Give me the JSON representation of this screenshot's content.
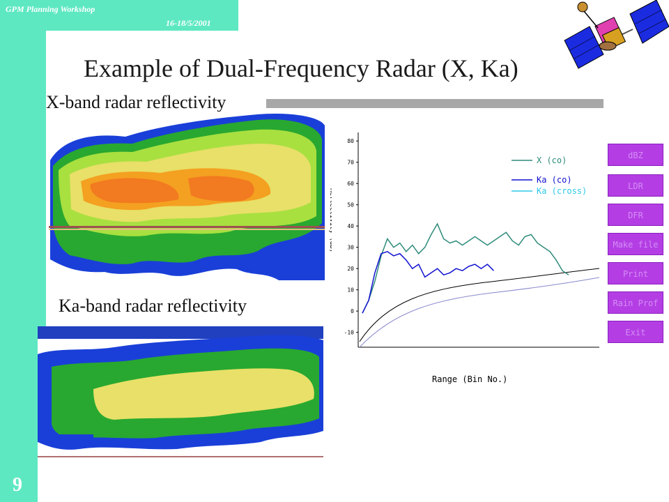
{
  "header": {
    "workshop": "GPM Planning Workshop",
    "date": "16-18/5/2001",
    "title": "Example of Dual-Frequency Radar (X, Ka)",
    "page_number": "9"
  },
  "images": {
    "xband_label": "X-band radar reflectivity",
    "kaband_label": "Ka-band radar reflectivity",
    "colorbar_label": "Reflectivity (dB)"
  },
  "buttons": [
    "dBZ",
    "LDR",
    "DFR",
    "Make file",
    "Print",
    "Rain Prof",
    "Exit"
  ],
  "colors": {
    "accent": "#5ee8c2",
    "button": "#b43ee4",
    "x_co": "#2e8b7a",
    "ka_co": "#1010d0",
    "ka_cross": "#30c8e8"
  },
  "chart_data": {
    "type": "line",
    "title": "",
    "xlabel": "Range (Bin No.)",
    "ylabel": "",
    "ylim": [
      -17,
      84
    ],
    "yticks": [
      80,
      70,
      60,
      50,
      40,
      30,
      20,
      10,
      0,
      -10
    ],
    "legend_position": "top-right",
    "series": [
      {
        "name": "X (co)",
        "color": "#2e8b7a",
        "x": [
          1,
          2,
          3,
          4,
          5,
          6,
          7,
          8,
          9,
          10,
          11,
          12,
          13,
          14,
          15,
          16,
          17,
          18,
          19,
          20,
          21,
          22,
          23,
          24,
          25,
          26,
          27,
          28,
          29,
          30,
          31,
          32,
          33,
          34
        ],
        "values": [
          -1,
          5,
          14,
          26,
          34,
          30,
          32,
          28,
          31,
          27,
          30,
          36,
          41,
          34,
          32,
          33,
          31,
          33,
          35,
          33,
          31,
          33,
          35,
          37,
          33,
          31,
          35,
          36,
          32,
          30,
          28,
          24,
          19,
          17
        ]
      },
      {
        "name": "Ka (co)",
        "color": "#1010d0",
        "x": [
          1,
          2,
          3,
          4,
          5,
          6,
          7,
          8,
          9,
          10,
          11,
          12,
          13,
          14,
          15,
          16,
          17,
          18,
          19,
          20,
          21,
          22
        ],
        "values": [
          -1,
          5,
          18,
          27,
          28,
          26,
          27,
          24,
          20,
          22,
          16,
          18,
          20,
          17,
          18,
          20,
          19,
          21,
          22,
          20,
          22,
          19
        ]
      },
      {
        "name": "Ka (cross)",
        "color": "#30c8e8",
        "x": [],
        "values": []
      }
    ]
  }
}
